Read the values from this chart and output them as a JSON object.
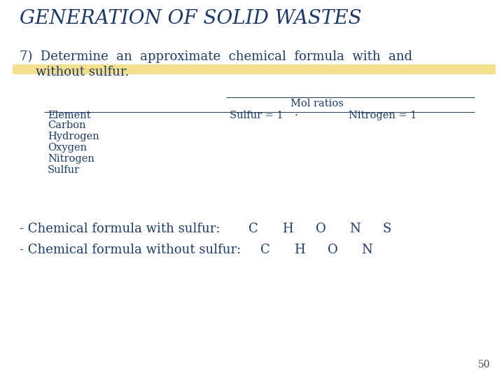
{
  "title": "GENERATION OF SOLID WASTES",
  "title_color": "#1a3a6b",
  "highlight_color": "#e8b800",
  "highlight_alpha": 0.45,
  "bg_color": "#ffffff",
  "body_text_color": "#1a3a6b",
  "body_line1": "7)  Determine  an  approximate  chemical  formula  with  and",
  "body_line2": "    without sulfur.",
  "table_header_top": "Mol ratios",
  "table_col1": "Element",
  "table_col2": "Sulfur = 1",
  "table_col3": "Nitrogen = 1",
  "table_rows": [
    "Carbon",
    "Hydrogen",
    "Oxygen",
    "Nitrogen",
    "Sulfur"
  ],
  "formula_with_label": "- Chemical formula with sulfur: ",
  "formula_with_elements": [
    "C",
    "H",
    "O",
    "N",
    "S"
  ],
  "formula_without_label": "- Chemical formula without sulfur: ",
  "formula_without_elements": [
    "C",
    "H",
    "O",
    "N"
  ],
  "page_number": "50",
  "font_family": "serif",
  "title_fontsize": 20,
  "body_fontsize": 13,
  "table_fontsize": 10.5,
  "formula_fontsize": 13
}
